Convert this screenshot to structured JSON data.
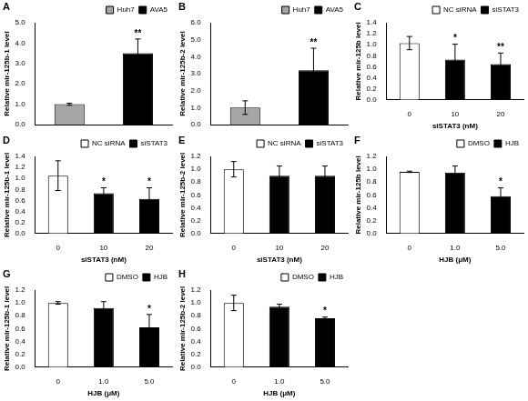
{
  "chart_data": [
    {
      "type": "bar",
      "title": "A",
      "y_label": "Relative mir-125b-1 level",
      "categories": [
        null,
        null
      ],
      "series": [
        {
          "name": "Huh7",
          "color": "#a6a6a6",
          "values": [
            1.0,
            null
          ],
          "errors": [
            0.05,
            null
          ]
        },
        {
          "name": "AVA5",
          "color": "#000000",
          "values": [
            null,
            3.5
          ],
          "errors": [
            null,
            0.7
          ]
        }
      ],
      "annotations": [
        {
          "text": "**",
          "x": 1
        }
      ],
      "ylim": [
        0,
        5
      ],
      "yticks": [
        {
          "value": 0,
          "label": "0.0"
        },
        {
          "value": 1,
          "label": "1.0"
        },
        {
          "value": 2,
          "label": "2.0"
        },
        {
          "value": 3,
          "label": "3.0"
        },
        {
          "value": 4,
          "label": "4.0"
        },
        {
          "value": 5,
          "label": "5.0"
        }
      ],
      "grid": false,
      "legend": "top",
      "tick_labels": "y"
    },
    {
      "type": "bar",
      "title": "B",
      "y_label": "Relative mir-125b-2 level",
      "categories": [
        null,
        null
      ],
      "series": [
        {
          "name": "Huh7",
          "color": "#a6a6a6",
          "values": [
            1.0,
            null
          ],
          "errors": [
            0.4,
            null
          ]
        },
        {
          "name": "AVA5",
          "color": "#000000",
          "values": [
            null,
            3.2
          ],
          "errors": [
            null,
            1.3
          ]
        }
      ],
      "annotations": [
        {
          "text": "**",
          "x": 1
        }
      ],
      "ylim": [
        0,
        6
      ],
      "yticks": [
        {
          "value": 0,
          "label": "0.0"
        },
        {
          "value": 1,
          "label": "1.0"
        },
        {
          "value": 2,
          "label": "2.0"
        },
        {
          "value": 3,
          "label": "3.0"
        },
        {
          "value": 4,
          "label": "4.0"
        },
        {
          "value": 5,
          "label": "5.0"
        },
        {
          "value": 6,
          "label": "6.0"
        }
      ],
      "grid": false,
      "legend": "top",
      "tick_labels": "y"
    },
    {
      "type": "bar",
      "title": "C",
      "y_label": "Relative mir-125b level",
      "x_label": "siSTAT3 (nM)",
      "categories": [
        "0",
        "10",
        "20"
      ],
      "series": [
        {
          "name": "NC siRNA",
          "color": "#ffffff",
          "values": [
            1.03,
            null,
            null
          ],
          "errors": [
            0.12,
            null,
            null
          ]
        },
        {
          "name": "siSTAT3",
          "color": "#000000",
          "values": [
            null,
            0.73,
            0.65
          ],
          "errors": [
            null,
            0.28,
            0.2
          ]
        }
      ],
      "annotations": [
        {
          "text": "*",
          "x": 1
        },
        {
          "text": "**",
          "x": 2
        }
      ],
      "ylim": [
        0,
        1.4
      ],
      "yticks": [
        {
          "value": 0,
          "label": "0.0"
        },
        {
          "value": 0.2,
          "label": "0.2"
        },
        {
          "value": 0.4,
          "label": "0.4"
        },
        {
          "value": 0.6,
          "label": "0.6"
        },
        {
          "value": 0.8,
          "label": "0.8"
        },
        {
          "value": 1,
          "label": "1.0"
        },
        {
          "value": 1.2,
          "label": "1.2"
        },
        {
          "value": 1.4,
          "label": "1.4"
        }
      ],
      "grid": false,
      "legend": "top"
    },
    {
      "type": "bar",
      "title": "D",
      "y_label": "Relative mir-125b-1 level",
      "x_label": "siSTAT3 (nM)",
      "categories": [
        "0",
        "10",
        "20"
      ],
      "series": [
        {
          "name": "NC siRNA",
          "color": "#ffffff",
          "values": [
            1.05,
            null,
            null
          ],
          "errors": [
            0.27,
            null,
            null
          ]
        },
        {
          "name": "siSTAT3",
          "color": "#000000",
          "values": [
            null,
            0.73,
            0.63
          ],
          "errors": [
            null,
            0.1,
            0.2
          ]
        }
      ],
      "annotations": [
        {
          "text": "*",
          "x": 1
        },
        {
          "text": "*",
          "x": 2
        }
      ],
      "ylim": [
        0,
        1.4
      ],
      "yticks": [
        {
          "value": 0,
          "label": "0.0"
        },
        {
          "value": 0.2,
          "label": "0.2"
        },
        {
          "value": 0.4,
          "label": "0.4"
        },
        {
          "value": 0.6,
          "label": "0.6"
        },
        {
          "value": 0.8,
          "label": "0.8"
        },
        {
          "value": 1,
          "label": "1.0"
        },
        {
          "value": 1.2,
          "label": "1.2"
        },
        {
          "value": 1.4,
          "label": "1.4"
        }
      ],
      "grid": false,
      "legend": "top"
    },
    {
      "type": "bar",
      "title": "E",
      "y_label": "Relative mir-125b-2 level",
      "x_label": "siSTAT3 (nM)",
      "categories": [
        "0",
        "10",
        "20"
      ],
      "series": [
        {
          "name": "NC siRNA",
          "color": "#ffffff",
          "values": [
            1.0,
            null,
            null
          ],
          "errors": [
            0.12,
            null,
            null
          ]
        },
        {
          "name": "siSTAT3",
          "color": "#000000",
          "values": [
            null,
            0.9,
            0.9
          ],
          "errors": [
            null,
            0.15,
            0.15
          ]
        }
      ],
      "ylim": [
        0,
        1.2
      ],
      "yticks": [
        {
          "value": 0,
          "label": "0.0"
        },
        {
          "value": 0.2,
          "label": "0.2"
        },
        {
          "value": 0.4,
          "label": "0.4"
        },
        {
          "value": 0.6,
          "label": "0.6"
        },
        {
          "value": 0.8,
          "label": "0.8"
        },
        {
          "value": 1,
          "label": "1.0"
        },
        {
          "value": 1.2,
          "label": "1.2"
        }
      ],
      "grid": false,
      "legend": "top"
    },
    {
      "type": "bar",
      "title": "F",
      "y_label": "Relative mir-125b level",
      "x_label": "HJB (μM)",
      "categories": [
        "0",
        "1.0",
        "5.0"
      ],
      "series": [
        {
          "name": "DMSO",
          "color": "#ffffff",
          "values": [
            0.96,
            null,
            null
          ],
          "errors": [
            0.01,
            null,
            null
          ]
        },
        {
          "name": "HJB",
          "color": "#000000",
          "values": [
            null,
            0.95,
            0.58
          ],
          "errors": [
            null,
            0.1,
            0.13
          ]
        }
      ],
      "annotations": [
        {
          "text": "*",
          "x": 2
        }
      ],
      "ylim": [
        0,
        1.2
      ],
      "yticks": [
        {
          "value": 0,
          "label": "0.0"
        },
        {
          "value": 0.2,
          "label": "0.2"
        },
        {
          "value": 0.4,
          "label": "0.4"
        },
        {
          "value": 0.6,
          "label": "0.6"
        },
        {
          "value": 0.8,
          "label": "0.8"
        },
        {
          "value": 1,
          "label": "1.0"
        },
        {
          "value": 1.2,
          "label": "1.2"
        }
      ],
      "grid": false,
      "legend": "top"
    },
    {
      "type": "bar",
      "title": "G",
      "y_label": "Relative mir-125b-1 level",
      "x_label": "HJB (μM)",
      "categories": [
        "0",
        "1.0",
        "5.0"
      ],
      "series": [
        {
          "name": "DMSO",
          "color": "#ffffff",
          "values": [
            1.0,
            null,
            null
          ],
          "errors": [
            0.02,
            null,
            null
          ]
        },
        {
          "name": "HJB",
          "color": "#000000",
          "values": [
            null,
            0.92,
            0.62
          ],
          "errors": [
            null,
            0.1,
            0.2
          ]
        }
      ],
      "annotations": [
        {
          "text": "*",
          "x": 2
        }
      ],
      "ylim": [
        0,
        1.2
      ],
      "yticks": [
        {
          "value": 0,
          "label": "0.0"
        },
        {
          "value": 0.2,
          "label": "0.2"
        },
        {
          "value": 0.4,
          "label": "0.4"
        },
        {
          "value": 0.6,
          "label": "0.6"
        },
        {
          "value": 0.8,
          "label": "0.8"
        },
        {
          "value": 1,
          "label": "1.0"
        },
        {
          "value": 1.2,
          "label": "1.2"
        }
      ],
      "grid": false,
      "legend": "top"
    },
    {
      "type": "bar",
      "title": "H",
      "y_label": "Relative mir-125b-2 level",
      "x_label": "HJB (μM)",
      "categories": [
        "0",
        "1.0",
        "5.0"
      ],
      "series": [
        {
          "name": "DMSO",
          "color": "#ffffff",
          "values": [
            1.0,
            null,
            null
          ],
          "errors": [
            0.12,
            null,
            null
          ]
        },
        {
          "name": "HJB",
          "color": "#000000",
          "values": [
            null,
            0.94,
            0.76
          ],
          "errors": [
            null,
            0.04,
            0.02
          ]
        }
      ],
      "annotations": [
        {
          "text": "*",
          "x": 2
        }
      ],
      "ylim": [
        0,
        1.2
      ],
      "yticks": [
        {
          "value": 0,
          "label": "0.0"
        },
        {
          "value": 0.2,
          "label": "0.2"
        },
        {
          "value": 0.4,
          "label": "0.4"
        },
        {
          "value": 0.6,
          "label": "0.6"
        },
        {
          "value": 0.8,
          "label": "0.8"
        },
        {
          "value": 1,
          "label": "1.0"
        },
        {
          "value": 1.2,
          "label": "1.2"
        }
      ],
      "grid": false,
      "legend": "top"
    }
  ]
}
